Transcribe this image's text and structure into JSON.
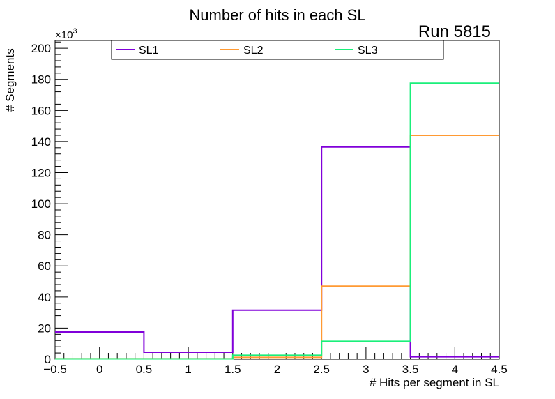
{
  "chart_data": {
    "type": "histogram-step",
    "title": "Number of hits in each SL",
    "annotation": "Run 5815",
    "xlabel": "# Hits per segment in SL",
    "ylabel": "# Segments",
    "y_multiplier_label": "×10",
    "y_multiplier_exponent": "3",
    "xlim": [
      -0.5,
      4.5
    ],
    "ylim": [
      0,
      205
    ],
    "x_ticks": [
      -0.5,
      0,
      0.5,
      1,
      1.5,
      2,
      2.5,
      3,
      3.5,
      4,
      4.5
    ],
    "x_tick_labels": [
      "−0.5",
      "0",
      "0.5",
      "1",
      "1.5",
      "2",
      "2.5",
      "3",
      "3.5",
      "4",
      "4.5"
    ],
    "y_ticks": [
      0,
      20,
      40,
      60,
      80,
      100,
      120,
      140,
      160,
      180,
      200
    ],
    "y_tick_labels": [
      "0",
      "20",
      "40",
      "60",
      "80",
      "100",
      "120",
      "140",
      "160",
      "180",
      "200"
    ],
    "bin_edges": [
      -0.5,
      0.5,
      1.5,
      2.5,
      3.5,
      4.5
    ],
    "series": [
      {
        "name": "SL1",
        "color": "#8000d9",
        "values": [
          17.5,
          4.5,
          31.5,
          136.5,
          1.5
        ]
      },
      {
        "name": "SL2",
        "color": "#ff9a33",
        "values": [
          0.3,
          0.3,
          1.2,
          47,
          144
        ]
      },
      {
        "name": "SL3",
        "color": "#1aef7a",
        "values": [
          0.2,
          0.2,
          2.5,
          11.5,
          177.5
        ]
      }
    ],
    "legend_position": "top"
  }
}
